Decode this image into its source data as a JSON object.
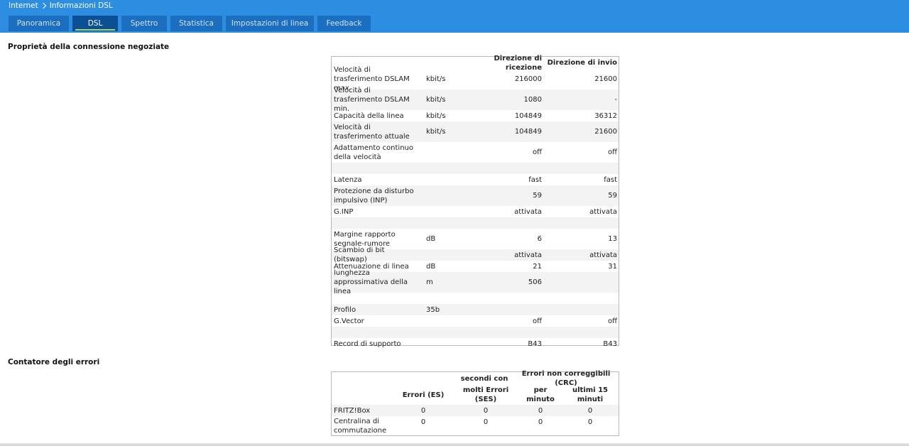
{
  "breadcrumb": {
    "parent": "Internet",
    "current": "Informazioni DSL"
  },
  "tabs": [
    {
      "label": "Panoramica"
    },
    {
      "label": "DSL"
    },
    {
      "label": "Spettro"
    },
    {
      "label": "Statistica"
    },
    {
      "label": "Impostazioni di linea"
    },
    {
      "label": "Feedback"
    }
  ],
  "active_tab": "DSL",
  "colors": {
    "header_bg": "#2d8de0",
    "tab_bg": "#1c6fc0",
    "tab_active_bg": "#0d4f94",
    "tab_active_underline": "#a8d65a"
  },
  "connection": {
    "title": "Proprietà della connessione negoziate",
    "head_rx": "Direzione di ricezione",
    "head_tx": "Direzione di invio",
    "rows": [
      {
        "label": "Velocità di trasferimento DSLAM max.",
        "unit": "kbit/s",
        "rx": "216000",
        "tx": "21600"
      },
      {
        "label": "Velocità di trasferimento DSLAM min.",
        "unit": "kbit/s",
        "rx": "1080",
        "tx": "-"
      },
      {
        "label": "Capacità della linea",
        "unit": "kbit/s",
        "rx": "104849",
        "tx": "36312"
      },
      {
        "label": "Velocità di trasferimento attuale",
        "unit": "kbit/s",
        "rx": "104849",
        "tx": "21600"
      },
      {
        "label": "Adattamento continuo della velocità",
        "unit": "",
        "rx": "off",
        "tx": "off"
      },
      {
        "label": "",
        "unit": "",
        "rx": "",
        "tx": ""
      },
      {
        "label": "Latenza",
        "unit": "",
        "rx": "fast",
        "tx": "fast"
      },
      {
        "label": "Protezione da disturbo impulsivo (INP)",
        "unit": "",
        "rx": "59",
        "tx": "59"
      },
      {
        "label": "G.INP",
        "unit": "",
        "rx": "attivata",
        "tx": "attivata"
      },
      {
        "label": "",
        "unit": "",
        "rx": "",
        "tx": ""
      },
      {
        "label": "Margine rapporto segnale-rumore",
        "unit": "dB",
        "rx": "6",
        "tx": "13"
      },
      {
        "label": "Scambio di bit (bitswap)",
        "unit": "",
        "rx": "attivata",
        "tx": "attivata"
      },
      {
        "label": "Attenuazione di linea",
        "unit": "dB",
        "rx": "21",
        "tx": "31"
      },
      {
        "label": "lunghezza approssimativa della linea",
        "unit": "m",
        "rx": "506",
        "tx": ""
      },
      {
        "label": "",
        "unit": "",
        "rx": "",
        "tx": ""
      },
      {
        "label": "Profilo",
        "unit": "35b",
        "rx": "",
        "tx": ""
      },
      {
        "label": "G.Vector",
        "unit": "",
        "rx": "off",
        "tx": "off"
      },
      {
        "label": "",
        "unit": "",
        "rx": "",
        "tx": ""
      },
      {
        "label": "Record di supporto",
        "unit": "",
        "rx": "B43",
        "tx": "B43"
      }
    ]
  },
  "errors": {
    "title": "Contatore degli errori",
    "group_seconds": "secondi con",
    "group_crc": "Errori non correggibili (CRC)",
    "col_es": "Errori (ES)",
    "col_ses": "molti Errori (SES)",
    "col_min": "per minuto",
    "col_15": "ultimi 15 minuti",
    "rows": [
      {
        "label": "FRITZ!Box",
        "es": "0",
        "ses": "0",
        "per_min": "0",
        "last15": "0"
      },
      {
        "label": "Centralina di commutazione",
        "es": "0",
        "ses": "0",
        "per_min": "0",
        "last15": "0"
      }
    ]
  }
}
